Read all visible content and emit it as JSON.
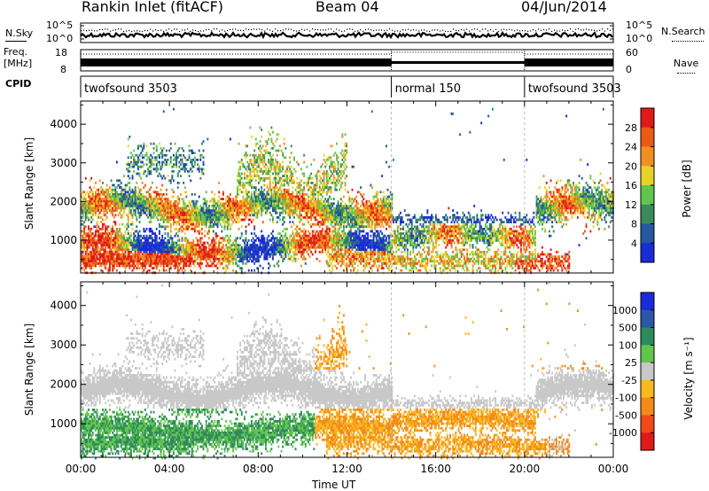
{
  "header": {
    "station": "Rankin Inlet (fitACF)",
    "beam": "Beam 04",
    "date": "04/Jun/2014"
  },
  "top_strip": {
    "left_label": "N.Sky",
    "left_ticks": [
      "10^5",
      "10^0"
    ],
    "right_label": "N.Search",
    "right_ticks": [
      "10^5",
      "10^0"
    ]
  },
  "freq_strip": {
    "left_label_1": "Freq.",
    "left_label_2": "[MHz]",
    "left_ticks": [
      "18",
      "8"
    ],
    "right_label": "Nave",
    "right_ticks": [
      "60",
      "0"
    ]
  },
  "cpid": {
    "label": "CPID",
    "segments": [
      {
        "name": "twofsound 3503",
        "start": 0,
        "end": 14
      },
      {
        "name": "normal 150",
        "start": 14,
        "end": 20
      },
      {
        "name": "twofsound 3503",
        "start": 20,
        "end": 24
      }
    ]
  },
  "colors": {
    "power": [
      "#1a2bd8",
      "#26579f",
      "#3a8a5a",
      "#62c64e",
      "#e8d228",
      "#f09022",
      "#ec5a18",
      "#e01a1a"
    ],
    "velocity": [
      "#e01a1a",
      "#ef4a18",
      "#f58a18",
      "#f8b820",
      "#c8c8c8",
      "#62c64e",
      "#2e8a5c",
      "#2b57a8",
      "#1a2bd8"
    ]
  },
  "chart_data": [
    {
      "type": "heatmap",
      "name": "power",
      "ylabel": "Slant Range [km]",
      "ylim": [
        150,
        4600
      ],
      "yticks": [
        1000,
        2000,
        3000,
        4000
      ],
      "xlim": [
        0,
        24
      ],
      "colorbar": {
        "label": "Power [dB]",
        "ticks": [
          4,
          8,
          12,
          16,
          20,
          24,
          28
        ],
        "range": [
          0,
          32
        ]
      }
    },
    {
      "type": "heatmap",
      "name": "velocity",
      "ylabel": "Slant Range [km]",
      "ylim": [
        150,
        4600
      ],
      "yticks": [
        1000,
        2000,
        3000,
        4000
      ],
      "xlim": [
        0,
        24
      ],
      "xlabel": "Time UT",
      "xticks": [
        "00:00",
        "04:00",
        "08:00",
        "12:00",
        "16:00",
        "20:00",
        "00:00"
      ],
      "colorbar": {
        "label": "Velocity [m s⁻¹]",
        "ticks": [
          "1000",
          "500",
          "100",
          "25",
          "-25",
          "-100",
          "-500",
          "-1000"
        ]
      }
    }
  ]
}
